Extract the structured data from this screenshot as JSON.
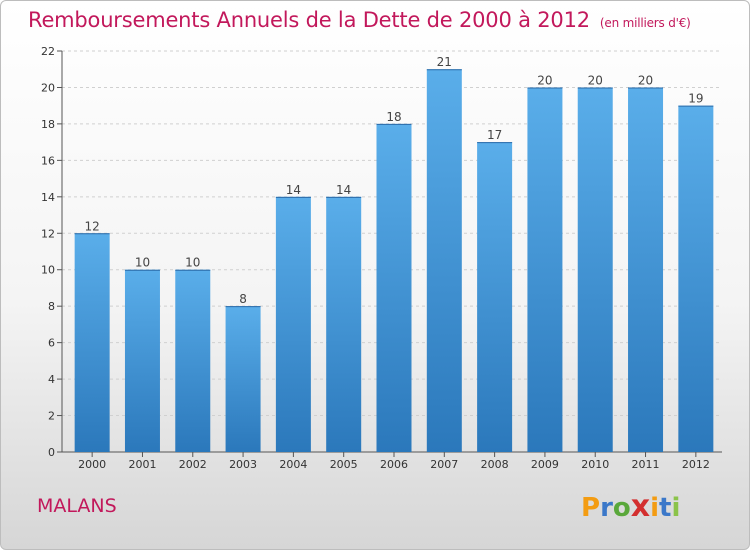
{
  "title": "Remboursements Annuels de la Dette de 2000 à 2012",
  "subtitle": "(en milliers d'€)",
  "commune": "MALANS",
  "logo": {
    "text": "Proxiti",
    "letters": [
      "P",
      "r",
      "o",
      "x",
      "i",
      "t",
      "i"
    ],
    "colors": [
      "#f39c12",
      "#3b78c9",
      "#5aa83b",
      "#d32f2f",
      "#f39c12",
      "#3b78c9",
      "#8bc34a"
    ]
  },
  "colors": {
    "bar_top": "#5aaeea",
    "bar_bottom": "#2b78bb",
    "title": "#c2185b"
  },
  "chart_data": {
    "type": "bar",
    "title": "Remboursements Annuels de la Dette de 2000 à 2012",
    "subtitle": "(en milliers d'€)",
    "categories": [
      "2000",
      "2001",
      "2002",
      "2003",
      "2004",
      "2005",
      "2006",
      "2007",
      "2008",
      "2009",
      "2010",
      "2011",
      "2012"
    ],
    "values": [
      12,
      10,
      10,
      8,
      14,
      14,
      18,
      21,
      17,
      20,
      20,
      20,
      19
    ],
    "yticks": [
      0,
      2,
      4,
      6,
      8,
      10,
      12,
      14,
      16,
      18,
      20,
      22
    ],
    "ylim": [
      0,
      22
    ],
    "grid": true,
    "legend": "none",
    "xlabel": "",
    "ylabel": ""
  }
}
